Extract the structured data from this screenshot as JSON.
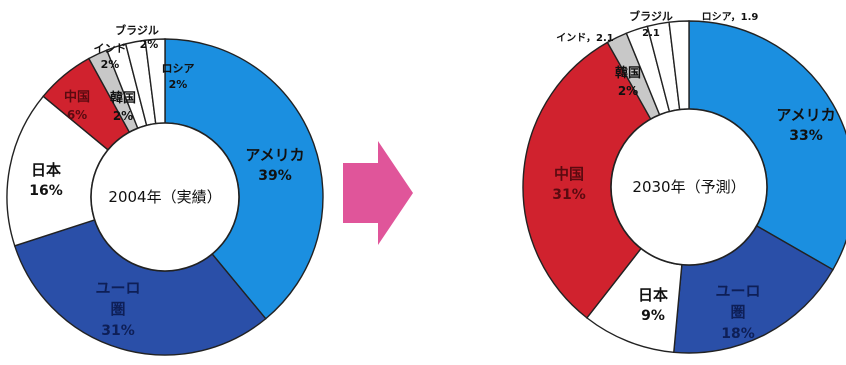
{
  "colors": {
    "usa": "#1b8fe0",
    "euro": "#2a4fa8",
    "japan": "#ffffff",
    "china": "#d0222e",
    "korea": "#c8c8c8",
    "india": "#ffffff",
    "brazil": "#ffffff",
    "russia": "#ffffff",
    "arrow": "#e0559a",
    "edge": "#222222"
  },
  "chart_data": [
    {
      "type": "pie",
      "variant": "donut",
      "center_label": "2004年（実績）",
      "slices": [
        {
          "key": "usa",
          "name": "アメリカ",
          "value": 39,
          "value_label": "39%"
        },
        {
          "key": "euro",
          "name": "ユーロ圏",
          "name_lines": [
            "ユーロ",
            "圏"
          ],
          "value": 31,
          "value_label": "31%"
        },
        {
          "key": "japan",
          "name": "日本",
          "value": 16,
          "value_label": "16%"
        },
        {
          "key": "china",
          "name": "中国",
          "value": 6,
          "value_label": "6%"
        },
        {
          "key": "korea",
          "name": "韓国",
          "value": 2,
          "value_label": "2%"
        },
        {
          "key": "india",
          "name": "インド",
          "value": 2,
          "value_label": "2%"
        },
        {
          "key": "brazil",
          "name": "ブラジル",
          "value": 2,
          "value_label": "2%"
        },
        {
          "key": "russia",
          "name": "ロシア",
          "value": 2,
          "value_label": "2%"
        }
      ]
    },
    {
      "type": "pie",
      "variant": "donut",
      "center_label": "2030年（予測）",
      "slices": [
        {
          "key": "usa",
          "name": "アメリカ",
          "value": 33,
          "value_label": "33%"
        },
        {
          "key": "euro",
          "name": "ユーロ圏",
          "name_lines": [
            "ユーロ",
            "圏"
          ],
          "value": 18,
          "value_label": "18%"
        },
        {
          "key": "japan",
          "name": "日本",
          "value": 9,
          "value_label": "9%"
        },
        {
          "key": "china",
          "name": "中国",
          "value": 31,
          "value_label": "31%"
        },
        {
          "key": "korea",
          "name": "韓国",
          "value": 2,
          "value_label": "2%"
        },
        {
          "key": "india",
          "name": "インド",
          "value": 2.1,
          "value_label": "インド，2.1"
        },
        {
          "key": "brazil",
          "name": "ブラジル",
          "value": 2.1,
          "value_label": "2.1"
        },
        {
          "key": "russia",
          "name": "ロシア",
          "value": 1.9,
          "value_label": "ロシア，1.9"
        }
      ]
    }
  ]
}
